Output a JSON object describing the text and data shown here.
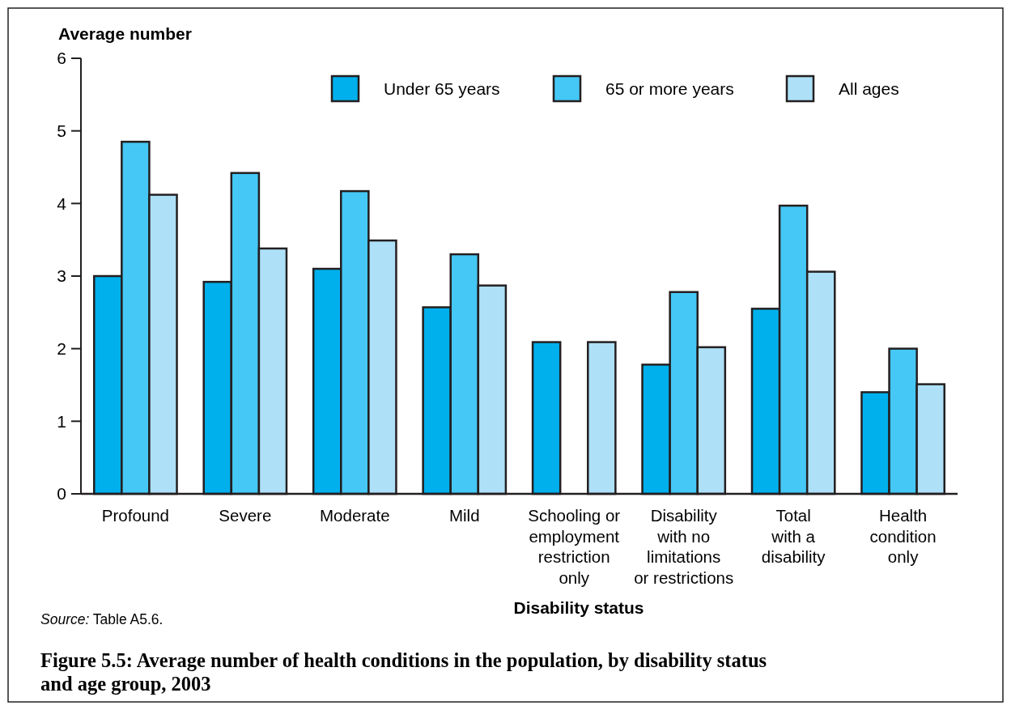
{
  "chart_data": {
    "type": "bar",
    "title": "Figure 5.5: Average number of health conditions in the population, by disability status and age group, 2003",
    "xlabel": "Disability status",
    "ylabel": "Average number",
    "categories": [
      "Profound",
      "Severe",
      "Moderate",
      "Mild",
      "Schooling or\nemployment\nrestriction\nonly",
      "Disability\nwith no\nlimitations\nor restrictions",
      "Total\nwith a\ndisability",
      "Health\ncondition\nonly"
    ],
    "series": [
      {
        "name": "Under 65 years",
        "color": "#00b0ec",
        "values": [
          3.0,
          2.92,
          3.1,
          2.57,
          2.09,
          1.78,
          2.55,
          1.4
        ]
      },
      {
        "name": "65 or more years",
        "color": "#45c8f5",
        "values": [
          4.85,
          4.42,
          4.17,
          3.3,
          null,
          2.78,
          3.97,
          2.0
        ]
      },
      {
        "name": "All ages",
        "color": "#aee0f8",
        "values": [
          4.12,
          3.38,
          3.49,
          2.87,
          2.09,
          2.02,
          3.06,
          1.51
        ]
      }
    ],
    "ylim": [
      0,
      6
    ],
    "yticks": [
      0,
      1,
      2,
      3,
      4,
      5,
      6
    ],
    "legend": "top right",
    "annotations": [
      "Source: Table A5.6."
    ]
  }
}
